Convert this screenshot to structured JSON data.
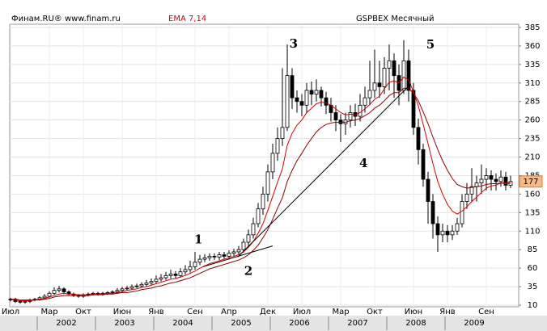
{
  "chart_data": {
    "type": "candlestick",
    "source": "Финам.RU®  www.finam.ru",
    "indicator_label": "EMA 7,14",
    "title": "GSPBEX Месячный",
    "categories": [
      "Июл",
      null,
      null,
      null,
      null,
      null,
      null,
      null,
      "Мар",
      null,
      null,
      null,
      null,
      null,
      null,
      "Окт",
      null,
      null,
      null,
      null,
      null,
      null,
      null,
      "Июн",
      null,
      null,
      null,
      null,
      null,
      null,
      "Янв",
      null,
      null,
      null,
      null,
      null,
      null,
      null,
      "Сен",
      null,
      null,
      null,
      null,
      null,
      null,
      "Апр",
      null,
      null,
      null,
      null,
      null,
      null,
      null,
      "Дек",
      null,
      null,
      null,
      null,
      null,
      null,
      "Июл",
      null,
      null,
      null,
      null,
      null,
      null,
      null,
      "Мар",
      null,
      null,
      null,
      null,
      null,
      null,
      "Окт",
      null,
      null,
      null,
      null,
      null,
      null,
      null,
      "Июн",
      null,
      null,
      null,
      null,
      null,
      null,
      "Янв",
      null,
      null,
      null,
      null,
      null,
      null,
      null,
      "Сен",
      null,
      null,
      null,
      null,
      null
    ],
    "year_labels": [
      null,
      null,
      null,
      null,
      null,
      null,
      "2002",
      null,
      null,
      null,
      null,
      null,
      null,
      null,
      null,
      null,
      null,
      null,
      "2003",
      null,
      null,
      null,
      null,
      null,
      null,
      null,
      null,
      null,
      null,
      null,
      "2004",
      null,
      null,
      null,
      null,
      null,
      null,
      null,
      null,
      null,
      null,
      null,
      "2005",
      null,
      null,
      null,
      null,
      null,
      null,
      null,
      null,
      null,
      null,
      null,
      "2006",
      null,
      null,
      null,
      null,
      null,
      null,
      null,
      null,
      null,
      null,
      null,
      "2007",
      null,
      null,
      null,
      null,
      null,
      null,
      null,
      null,
      null,
      null,
      null,
      "2008",
      null,
      null,
      null,
      null,
      null,
      null,
      null,
      null,
      null,
      null,
      null,
      "2009",
      null,
      null,
      null,
      null,
      null,
      null,
      null,
      null,
      null,
      null,
      null,
      null,
      null
    ],
    "open": [
      17,
      18,
      15,
      14,
      15,
      17,
      18,
      20,
      22,
      26,
      30,
      32,
      28,
      25,
      23,
      22,
      24,
      25,
      26,
      25,
      26,
      27,
      28,
      30,
      32,
      33,
      35,
      36,
      38,
      40,
      42,
      45,
      47,
      50,
      52,
      50,
      55,
      58,
      62,
      68,
      72,
      74,
      76,
      75,
      78,
      76,
      80,
      82,
      85,
      95,
      105,
      120,
      140,
      160,
      190,
      215,
      235,
      250,
      320,
      290,
      285,
      280,
      300,
      295,
      300,
      290,
      280,
      270,
      260,
      255,
      260,
      270,
      265,
      280,
      290,
      300,
      310,
      305,
      330,
      340,
      320,
      300,
      340,
      300,
      250,
      220,
      180,
      150,
      120,
      105,
      110,
      105,
      110,
      120,
      150,
      160,
      170,
      175,
      180,
      185,
      180,
      177,
      183,
      172
    ],
    "high": [
      20,
      20,
      17,
      17,
      19,
      20,
      22,
      25,
      29,
      34,
      36,
      34,
      30,
      27,
      25,
      26,
      27,
      28,
      28,
      28,
      29,
      30,
      33,
      35,
      36,
      38,
      39,
      41,
      44,
      46,
      50,
      52,
      55,
      58,
      56,
      60,
      64,
      70,
      82,
      78,
      79,
      80,
      80,
      82,
      82,
      84,
      86,
      90,
      100,
      112,
      128,
      148,
      170,
      200,
      228,
      250,
      330,
      362,
      330,
      300,
      295,
      310,
      312,
      315,
      305,
      298,
      290,
      280,
      268,
      270,
      280,
      282,
      295,
      305,
      340,
      355,
      340,
      345,
      362,
      350,
      335,
      368,
      355,
      310,
      262,
      228,
      190,
      160,
      130,
      120,
      118,
      118,
      128,
      160,
      175,
      195,
      185,
      200,
      195,
      192,
      188,
      192,
      190,
      185
    ],
    "low": [
      15,
      13,
      12,
      12,
      13,
      15,
      16,
      18,
      20,
      24,
      27,
      25,
      23,
      21,
      20,
      20,
      22,
      23,
      23,
      23,
      24,
      25,
      26,
      28,
      30,
      31,
      33,
      34,
      35,
      37,
      39,
      42,
      44,
      46,
      46,
      47,
      51,
      54,
      58,
      64,
      68,
      70,
      71,
      71,
      72,
      72,
      76,
      78,
      81,
      90,
      100,
      115,
      132,
      150,
      180,
      205,
      225,
      245,
      275,
      270,
      265,
      270,
      280,
      285,
      278,
      268,
      258,
      245,
      230,
      240,
      250,
      252,
      258,
      270,
      280,
      290,
      290,
      295,
      300,
      290,
      280,
      295,
      285,
      240,
      200,
      170,
      120,
      100,
      82,
      95,
      95,
      98,
      105,
      115,
      140,
      150,
      150,
      160,
      165,
      165,
      165,
      170,
      165,
      168
    ],
    "close": [
      18,
      15,
      14,
      15,
      17,
      18,
      20,
      22,
      26,
      30,
      32,
      28,
      25,
      23,
      22,
      24,
      25,
      26,
      25,
      26,
      27,
      28,
      30,
      32,
      33,
      35,
      36,
      38,
      40,
      42,
      45,
      47,
      50,
      52,
      50,
      55,
      58,
      62,
      68,
      72,
      74,
      76,
      75,
      78,
      76,
      80,
      82,
      85,
      95,
      105,
      120,
      140,
      160,
      190,
      215,
      235,
      250,
      320,
      290,
      285,
      280,
      300,
      295,
      300,
      290,
      280,
      270,
      260,
      255,
      260,
      270,
      265,
      280,
      290,
      300,
      310,
      305,
      330,
      340,
      320,
      300,
      340,
      300,
      250,
      220,
      180,
      150,
      120,
      105,
      110,
      105,
      110,
      120,
      150,
      160,
      170,
      175,
      180,
      185,
      180,
      177,
      183,
      172,
      177
    ],
    "up_color": "#ffffff",
    "down_color": "#000000",
    "ema": [
      {
        "color": "#d40000",
        "values": [
          18,
          17,
          16,
          16,
          16,
          17,
          18,
          19,
          21,
          23,
          25,
          26,
          25,
          25,
          24,
          24,
          24,
          25,
          25,
          25,
          26,
          26,
          27,
          28,
          30,
          31,
          32,
          34,
          35,
          37,
          39,
          41,
          43,
          45,
          46,
          48,
          50,
          53,
          56,
          60,
          63,
          66,
          68,
          70,
          72,
          74,
          76,
          78,
          82,
          88,
          96,
          107,
          120,
          138,
          157,
          176,
          194,
          226,
          242,
          253,
          260,
          270,
          276,
          282,
          284,
          283,
          280,
          275,
          270,
          267,
          268,
          267,
          270,
          275,
          281,
          288,
          292,
          302,
          311,
          313,
          310,
          318,
          314,
          298,
          279,
          254,
          228,
          201,
          177,
          160,
          146,
          137,
          133,
          137,
          143,
          150,
          156,
          162,
          168,
          171,
          172,
          175,
          174,
          175
        ]
      },
      {
        "color": "#8b0000",
        "values": [
          18,
          18,
          17,
          17,
          17,
          17,
          17,
          18,
          19,
          21,
          22,
          23,
          23,
          23,
          23,
          23,
          23,
          24,
          24,
          24,
          25,
          25,
          26,
          27,
          27,
          28,
          29,
          31,
          32,
          33,
          35,
          36,
          38,
          40,
          41,
          43,
          45,
          47,
          50,
          53,
          56,
          59,
          61,
          63,
          65,
          67,
          69,
          71,
          74,
          78,
          84,
          91,
          101,
          112,
          126,
          141,
          155,
          177,
          192,
          205,
          215,
          226,
          235,
          244,
          250,
          254,
          256,
          257,
          257,
          257,
          259,
          260,
          262,
          266,
          270,
          276,
          280,
          286,
          293,
          297,
          297,
          303,
          303,
          296,
          286,
          271,
          255,
          237,
          220,
          205,
          192,
          181,
          173,
          170,
          168,
          169,
          170,
          171,
          173,
          174,
          174,
          175,
          175,
          175
        ]
      }
    ],
    "trendlines": [
      {
        "x": [
          39.7,
          54
        ],
        "y": [
          62,
          90
        ]
      },
      {
        "x": [
          46.8,
          82.5
        ],
        "y": [
          75,
          309
        ]
      }
    ],
    "annotations": [
      {
        "text": "1",
        "x": 38.7,
        "y": 98
      },
      {
        "text": "2",
        "x": 49,
        "y": 55
      },
      {
        "text": "3",
        "x": 58.3,
        "y": 362
      },
      {
        "text": "4",
        "x": 72.7,
        "y": 201
      },
      {
        "text": "5",
        "x": 86.5,
        "y": 361
      }
    ],
    "ylim": [
      10,
      385
    ],
    "yticks": [
      10,
      35,
      60,
      85,
      110,
      135,
      160,
      185,
      210,
      235,
      260,
      285,
      310,
      335,
      360,
      385
    ],
    "grid": true
  }
}
